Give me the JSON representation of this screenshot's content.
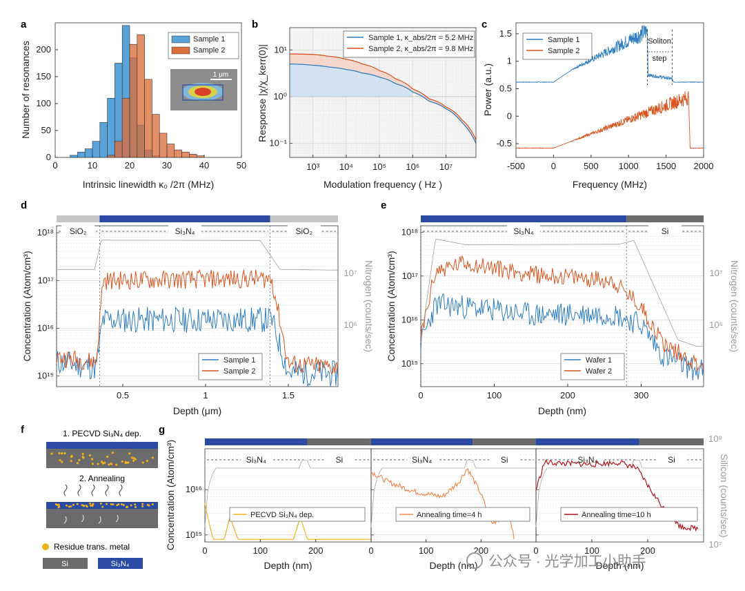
{
  "figure_labels": {
    "a": "a",
    "b": "b",
    "c": "c",
    "d": "d",
    "e": "e",
    "f": "f",
    "g": "g"
  },
  "schematic": {
    "step1": "1. PECVD Si₃N₄ dep.",
    "step2": "2. Annealing",
    "legend_dot": "Residue trans. metal",
    "legend_si": "Si",
    "legend_sin": "Si₃N₄"
  },
  "watermark": "公众号 · 光学加工小助手",
  "colors": {
    "blue": "#2f7dc0",
    "orange": "#d9541e",
    "red": "#b5121b",
    "gold": "#efb21a",
    "lightorange": "#f08a52",
    "navy": "#2b4aa3",
    "gray": "#8a8a8a"
  },
  "chart_data": [
    {
      "id": "a",
      "type": "bar",
      "title": "",
      "xlabel": "Intrinsic linewidth κ₀ /2π (MHz)",
      "ylabel": "Number of resonances",
      "xlim": [
        0,
        50
      ],
      "ylim": [
        0,
        250
      ],
      "xticks": [
        "0",
        "10",
        "20",
        "30",
        "40",
        "50"
      ],
      "yticks": [
        "0",
        "50",
        "100",
        "150",
        "200"
      ],
      "bin_width": 2,
      "series": [
        {
          "name": "Sample 1",
          "bin_starts": [
            4,
            6,
            8,
            10,
            12,
            14,
            16,
            18,
            20,
            22,
            24,
            26
          ],
          "values": [
            4,
            10,
            16,
            30,
            65,
            110,
            175,
            245,
            185,
            60,
            14,
            3
          ]
        },
        {
          "name": "Sample 2",
          "bin_starts": [
            14,
            16,
            18,
            20,
            22,
            24,
            26,
            28,
            30,
            32,
            34,
            36,
            38
          ],
          "values": [
            4,
            30,
            110,
            210,
            228,
            145,
            80,
            45,
            25,
            14,
            10,
            6,
            3
          ]
        }
      ],
      "inset_scale": "1 μm"
    },
    {
      "id": "b",
      "type": "line",
      "xscale": "log",
      "yscale": "log",
      "xlabel": "Modulation frequency ( Hz )",
      "ylabel": "Response |χ/χ_kerr(0)|",
      "xlim": [
        200,
        80000000
      ],
      "ylim": [
        0.05,
        30
      ],
      "xticks": [
        "10³",
        "10⁴",
        "10⁵",
        "10⁶",
        "10⁷"
      ],
      "yticks": [
        "10⁻¹",
        "10⁰",
        "10¹"
      ],
      "series": [
        {
          "name": "Sample 1, κ_abs/2π = 5.2 MHz",
          "x": [
            200,
            1000,
            3000,
            10000,
            30000,
            100000,
            300000,
            1000000,
            3000000,
            10000000,
            30000000,
            80000000
          ],
          "y": [
            5.0,
            4.7,
            4.3,
            3.8,
            3.2,
            2.6,
            1.9,
            1.25,
            0.8,
            0.55,
            0.28,
            0.1
          ]
        },
        {
          "name": "Sample 2, κ_abs/2π = 9.8 MHz",
          "x": [
            200,
            1000,
            3000,
            10000,
            30000,
            100000,
            300000,
            1000000,
            3000000,
            10000000,
            30000000,
            80000000
          ],
          "y": [
            8.2,
            8.0,
            7.3,
            6.3,
            5.0,
            3.6,
            2.4,
            1.45,
            0.9,
            0.6,
            0.32,
            0.12
          ]
        }
      ]
    },
    {
      "id": "c",
      "type": "line",
      "xlabel": "Frequency (MHz)",
      "ylabel": "Power (a.u.)",
      "xlim": [
        -500,
        2000
      ],
      "ylim": [
        -0.75,
        1.7
      ],
      "xticks": [
        "-500",
        "0",
        "500",
        "1000",
        "1500",
        "2000"
      ],
      "yticks": [
        "-0.5",
        "0",
        "0.5",
        "1",
        "1.5"
      ],
      "annotation": "Soliton step",
      "series": [
        {
          "name": "Sample 1",
          "x": [
            -500,
            0,
            250,
            1250,
            1260,
            1580,
            1600,
            2000
          ],
          "y": [
            0.62,
            0.62,
            0.85,
            1.55,
            0.75,
            0.68,
            0.62,
            0.62
          ]
        },
        {
          "name": "Sample 2",
          "x": [
            -500,
            0,
            250,
            1800,
            1820,
            2000
          ],
          "y": [
            -0.58,
            -0.58,
            -0.45,
            0.35,
            -0.58,
            -0.58
          ]
        }
      ]
    },
    {
      "id": "d",
      "type": "line",
      "yscale": "log",
      "xlabel": "Depth (μm)",
      "ylabel": "Concentration (Atom/cm³)",
      "y2label": "Nitrogen (counts/sec)",
      "xlim": [
        0.1,
        1.8
      ],
      "ylim": [
        600000000000000,
        1400000000000000000
      ],
      "xticks": [
        "0.5",
        "1",
        "1.5"
      ],
      "yticks": [
        "10¹⁵",
        "10¹⁶",
        "10¹⁷",
        "10¹⁸"
      ],
      "y2ticks": [
        "10⁶",
        "10⁷"
      ],
      "layers": [
        "SiO₂",
        "Si₃N₄",
        "SiO₂"
      ],
      "series": [
        {
          "name": "Sample 1",
          "x": [
            0.1,
            0.34,
            0.38,
            1.4,
            1.5,
            1.8
          ],
          "y": [
            2000000000000000,
            1500000000000000,
            15000000000000000,
            15000000000000000,
            1200000000000000,
            1100000000000000
          ]
        },
        {
          "name": "Sample 2",
          "x": [
            0.1,
            0.34,
            0.38,
            1.4,
            1.5,
            1.8
          ],
          "y": [
            2500000000000000,
            2000000000000000,
            100000000000000000,
            110000000000000000,
            1800000000000000,
            1500000000000000
          ]
        },
        {
          "name": "Nitrogen",
          "x": [
            0.1,
            0.33,
            0.37,
            1.33,
            1.45,
            1.8
          ],
          "y": [
            170000000000000000,
            170000000000000000,
            700000000000000000,
            690000000000000000,
            170000000000000000,
            165000000000000000
          ]
        }
      ]
    },
    {
      "id": "e",
      "type": "line",
      "yscale": "log",
      "xlabel": "Depth (nm)",
      "ylabel": "Concentration (Atom/cm³)",
      "y2label": "Nitrogen (counts/sec)",
      "xlim": [
        0,
        385
      ],
      "ylim": [
        300000000000000,
        1400000000000000000
      ],
      "xticks": [
        "0",
        "100",
        "200",
        "300"
      ],
      "yticks": [
        "10¹⁵",
        "10¹⁶",
        "10¹⁷",
        "10¹⁸"
      ],
      "y2ticks": [
        "10⁶",
        "10⁷"
      ],
      "layers": [
        "Si₃N₄",
        "Si"
      ],
      "series": [
        {
          "name": "Wafer 1",
          "x": [
            0,
            20,
            60,
            150,
            260,
            300,
            330,
            375
          ],
          "y": [
            3000000000000000,
            22000000000000000,
            20000000000000000,
            13000000000000000,
            14000000000000000,
            8000000000000000,
            1500000000000000,
            700000000000000
          ]
        },
        {
          "name": "Wafer 2",
          "x": [
            0,
            20,
            60,
            150,
            260,
            300,
            330,
            375
          ],
          "y": [
            4000000000000000,
            130000000000000000,
            200000000000000000,
            110000000000000000,
            80000000000000000,
            20000000000000000,
            3000000000000000,
            1000000000000000
          ]
        },
        {
          "name": "Nitrogen",
          "x": [
            0,
            20,
            60,
            270,
            290,
            350,
            375
          ],
          "y": [
            3000000000000000,
            700000000000000000,
            520000000000000000,
            530000000000000000,
            650000000000000000,
            3500000000000000,
            2500000000000000
          ]
        }
      ]
    },
    {
      "id": "g",
      "type": "line",
      "yscale": "log",
      "xlabel": "Depth (nm)",
      "ylabel": "Concentration (Atom/cm³)",
      "y2label": "Silicon (counts/sec)",
      "y2ticks": [
        "10⁷",
        "10⁸"
      ],
      "yticks": [
        "10¹⁵",
        "10¹⁶"
      ],
      "panels": [
        {
          "label": "PECVD Si₃N₄ dep.",
          "xlim": [
            0,
            300
          ],
          "xticks": [
            "0",
            "100",
            "200"
          ],
          "layers": [
            "Si₃N₄",
            "Si"
          ],
          "x": [
            0,
            5,
            15,
            35,
            45,
            60,
            160,
            172,
            185,
            300
          ],
          "y": [
            5000000000000000,
            2500000000000000,
            800000000000000,
            800000000000000,
            2500000000000000,
            800000000000000,
            800000000000000,
            2500000000000000,
            800000000000000,
            800000000000000
          ]
        },
        {
          "label": "Annealing time=4 h",
          "xlim": [
            0,
            300
          ],
          "xticks": [
            "0",
            "100",
            "200"
          ],
          "layers": [
            "Si₃N₄",
            "Si"
          ],
          "x": [
            0,
            30,
            80,
            130,
            160,
            175,
            200,
            220,
            250,
            260
          ],
          "y": [
            25000000000000000,
            15000000000000000,
            9000000000000000,
            7000000000000000,
            15000000000000000,
            30000000000000000,
            8000000000000000,
            1800000000000000,
            3000000000000000,
            900000000000000
          ]
        },
        {
          "label": "Annealing time=10 h",
          "xlim": [
            0,
            300
          ],
          "xticks": [
            "0",
            "100",
            "200"
          ],
          "layers": [
            "Si₃N₄",
            "Si"
          ],
          "x": [
            0,
            15,
            50,
            100,
            150,
            180,
            210,
            240,
            260,
            290
          ],
          "y": [
            10000000000000000,
            40000000000000000,
            38000000000000000,
            36000000000000000,
            40000000000000000,
            30000000000000000,
            8000000000000000,
            2500000000000000,
            1500000000000000,
            1400000000000000
          ]
        }
      ]
    }
  ]
}
